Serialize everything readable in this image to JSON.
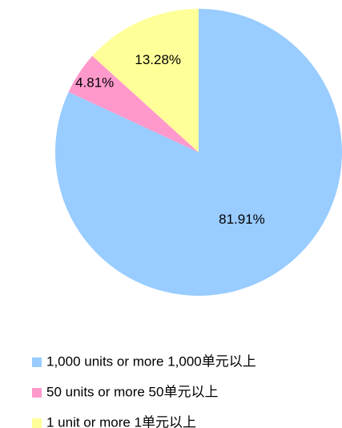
{
  "chart_data": {
    "type": "pie",
    "categories": [
      "1,000 units or more 1,000单元以上",
      "50 units or more 50单元以上",
      "1 unit or more 1单元以上"
    ],
    "values": [
      81.91,
      4.81,
      13.28
    ],
    "value_labels": [
      "81.91%",
      "4.81%",
      "13.28%"
    ],
    "colors": [
      "#99ccff",
      "#ff99cc",
      "#ffff99"
    ],
    "legend": "bottom"
  }
}
